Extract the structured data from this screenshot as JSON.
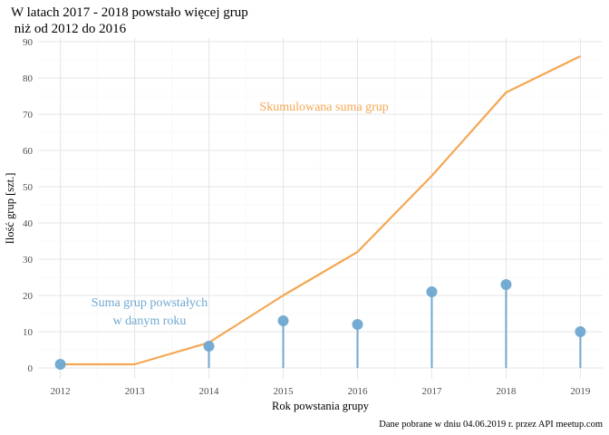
{
  "chart_data": {
    "type": "line",
    "title": [
      "W latach 2017 - 2018 powstało więcej grup",
      " niż od 2012 do 2016"
    ],
    "xlabel": "Rok powstania grupy",
    "ylabel": "Ilość grup [szt.]",
    "caption": "Dane pobrane w dniu 04.06.2019 r. przez API meetup.com",
    "x": [
      2012,
      2013,
      2014,
      2015,
      2016,
      2017,
      2018,
      2019
    ],
    "xlim": [
      2011.7,
      2019.3
    ],
    "ylim": [
      -3,
      91
    ],
    "y_ticks": [
      0,
      10,
      20,
      30,
      40,
      50,
      60,
      70,
      80,
      90
    ],
    "grid": true,
    "series": [
      {
        "kind": "line",
        "color": "#F4A753",
        "values": [
          1,
          1,
          7,
          20,
          32,
          53,
          76,
          86
        ]
      },
      {
        "kind": "lollipop",
        "color": "#6FA8D0",
        "x": [
          2012,
          2014,
          2015,
          2016,
          2017,
          2018,
          2019
        ],
        "values": [
          1,
          6,
          13,
          12,
          21,
          23,
          10
        ]
      }
    ],
    "annotations": [
      {
        "text": [
          "Skumulowana suma grup"
        ],
        "color": "#F4A753",
        "x": 2015.55,
        "y": 71
      },
      {
        "text": [
          "Suma grup powstałych",
          "w danym roku"
        ],
        "color": "#6FA8D0",
        "x": 2013.2,
        "y": 17
      }
    ]
  }
}
